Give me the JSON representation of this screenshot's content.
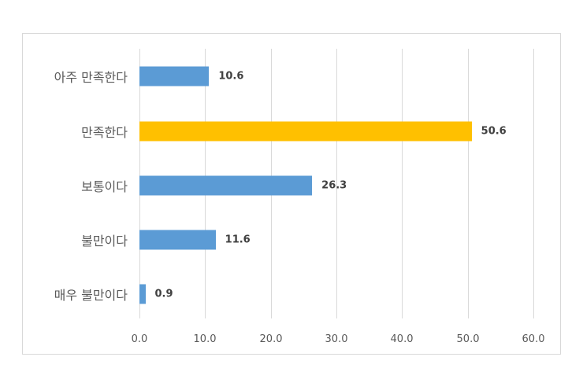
{
  "chart_data": {
    "type": "bar",
    "orientation": "horizontal",
    "title": "",
    "xlabel": "",
    "ylabel": "",
    "categories": [
      "아주 만족한다",
      "만족한다",
      "보통이다",
      "불만이다",
      "매우 불만이다"
    ],
    "values": [
      10.6,
      50.6,
      26.3,
      11.6,
      0.9
    ],
    "value_labels": [
      "10.6",
      "50.6",
      "26.3",
      "11.6",
      "0.9"
    ],
    "bar_colors": [
      "#5b9bd5",
      "#ffc000",
      "#5b9bd5",
      "#5b9bd5",
      "#5b9bd5"
    ],
    "xlim": [
      0,
      60
    ],
    "xticks": [
      "0.0",
      "10.0",
      "20.0",
      "30.0",
      "40.0",
      "50.0",
      "60.0"
    ],
    "grid": true,
    "legend": null
  }
}
